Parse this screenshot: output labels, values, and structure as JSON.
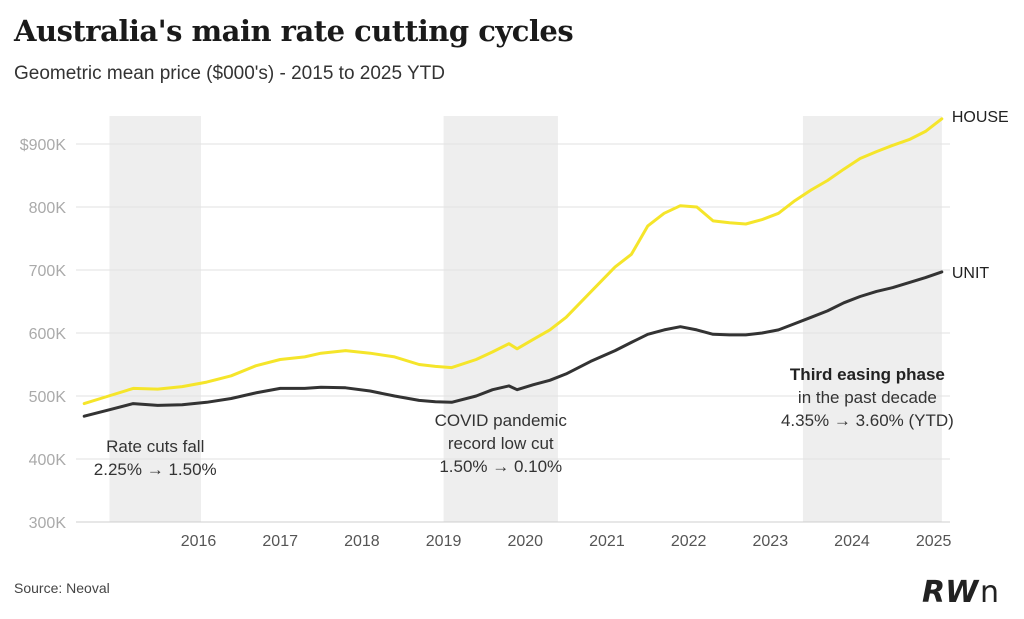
{
  "title": "Australia's main rate cutting cycles",
  "subtitle": "Geometric mean price ($000's) - 2015 to 2025 YTD",
  "source": "Source: Neoval",
  "logo_text": "RWn",
  "chart_data": {
    "type": "line",
    "title": "Australia's main rate cutting cycles",
    "subtitle": "Geometric mean price ($000's) - 2015 to 2025 YTD",
    "ylim": [
      300,
      950
    ],
    "xlim": [
      2015.0,
      2025.7
    ],
    "y_ticks": [
      300,
      400,
      500,
      600,
      700,
      800,
      900
    ],
    "y_tick_labels": [
      "300K",
      "400K",
      "500K",
      "600K",
      "700K",
      "800K",
      "$900K"
    ],
    "x_ticks": [
      2016,
      2017,
      2018,
      2019,
      2020,
      2021,
      2022,
      2023,
      2024,
      2025
    ],
    "x_tick_labels": [
      "2016",
      "2017",
      "2018",
      "2019",
      "2020",
      "2021",
      "2022",
      "2023",
      "2024",
      "2025"
    ],
    "grid": "horizontal",
    "colors": {
      "house": "#f5e52a",
      "unit": "#333333",
      "band": "#eeeeee"
    },
    "shaded_periods": [
      {
        "start": 2015.41,
        "end": 2016.53,
        "label_lines": [
          "Rate cuts fall",
          "2.25% → 1.50%"
        ]
      },
      {
        "start": 2019.5,
        "end": 2020.9,
        "label_lines": [
          "COVID pandemic",
          "record low cut",
          "1.50% → 0.10%"
        ]
      },
      {
        "start": 2023.9,
        "end": 2025.6,
        "label_bold": "Third easing phase",
        "label_lines": [
          "in the past decade",
          "4.35% → 3.60% (YTD)"
        ]
      }
    ],
    "series": [
      {
        "name": "HOUSE",
        "x": [
          2015.1,
          2015.4,
          2015.7,
          2016.0,
          2016.3,
          2016.6,
          2016.9,
          2017.2,
          2017.5,
          2017.8,
          2018.0,
          2018.3,
          2018.6,
          2018.9,
          2019.2,
          2019.4,
          2019.6,
          2019.9,
          2020.1,
          2020.3,
          2020.4,
          2020.6,
          2020.8,
          2021.0,
          2021.3,
          2021.6,
          2021.8,
          2022.0,
          2022.2,
          2022.4,
          2022.6,
          2022.8,
          2023.0,
          2023.2,
          2023.4,
          2023.6,
          2023.8,
          2024.0,
          2024.2,
          2024.4,
          2024.6,
          2024.8,
          2025.0,
          2025.2,
          2025.4,
          2025.6
        ],
        "values": [
          488,
          500,
          512,
          511,
          515,
          522,
          532,
          548,
          558,
          562,
          568,
          572,
          568,
          562,
          550,
          547,
          545,
          558,
          570,
          583,
          575,
          590,
          605,
          625,
          665,
          705,
          725,
          770,
          790,
          802,
          800,
          778,
          775,
          773,
          780,
          790,
          810,
          827,
          842,
          860,
          877,
          888,
          898,
          907,
          920,
          940
        ]
      },
      {
        "name": "UNIT",
        "x": [
          2015.1,
          2015.4,
          2015.7,
          2016.0,
          2016.3,
          2016.6,
          2016.9,
          2017.2,
          2017.5,
          2017.8,
          2018.0,
          2018.3,
          2018.6,
          2018.9,
          2019.2,
          2019.4,
          2019.6,
          2019.9,
          2020.1,
          2020.3,
          2020.4,
          2020.6,
          2020.8,
          2021.0,
          2021.3,
          2021.6,
          2021.8,
          2022.0,
          2022.2,
          2022.4,
          2022.6,
          2022.8,
          2023.0,
          2023.2,
          2023.4,
          2023.6,
          2023.8,
          2024.0,
          2024.2,
          2024.4,
          2024.6,
          2024.8,
          2025.0,
          2025.2,
          2025.4,
          2025.6
        ],
        "values": [
          468,
          478,
          488,
          485,
          486,
          490,
          496,
          505,
          512,
          512,
          514,
          513,
          508,
          500,
          493,
          491,
          490,
          500,
          510,
          516,
          510,
          518,
          525,
          535,
          555,
          572,
          585,
          598,
          605,
          610,
          605,
          598,
          597,
          597,
          600,
          605,
          615,
          625,
          635,
          648,
          658,
          666,
          672,
          680,
          688,
          697
        ]
      }
    ]
  }
}
